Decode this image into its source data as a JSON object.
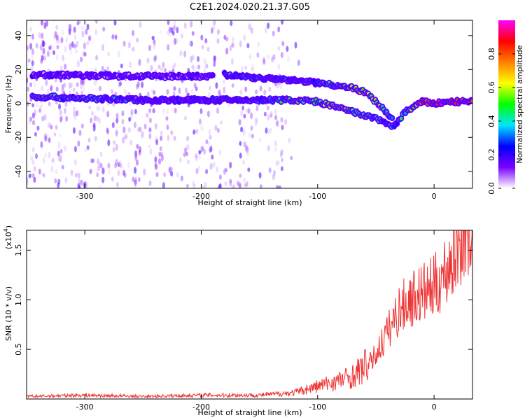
{
  "figure": {
    "title": "C2E1.2024.020.21.37.G05"
  },
  "chart_data": [
    {
      "type": "heatmap",
      "xlabel": "Height of straight line (km)",
      "ylabel": "Frequency (Hz)",
      "xlim": [
        -350,
        33
      ],
      "ylim": [
        -50,
        49
      ],
      "xticks": [
        -300,
        -200,
        -100,
        0
      ],
      "yticks": [
        -40,
        -20,
        0,
        20,
        40
      ],
      "colorbar": {
        "label": "Normalized spectral amplitude",
        "range": [
          0,
          1
        ],
        "ticks": [
          0.0,
          0.2,
          0.4,
          0.6,
          0.8
        ],
        "colormap": [
          "#ffffff",
          "#7b00ff",
          "#0000ff",
          "#00e5ff",
          "#00ff00",
          "#ffff00",
          "#ff8000",
          "#ff0000",
          "#ff00ff"
        ]
      },
      "features": [
        {
          "name": "main-band",
          "points": [
            [
              -345,
              4,
              0.4
            ],
            [
              -300,
              3,
              0.35
            ],
            [
              -250,
              2,
              0.2
            ],
            [
              -200,
              2,
              0.2
            ],
            [
              -150,
              2,
              0.25
            ],
            [
              -120,
              2,
              0.45
            ],
            [
              -100,
              1,
              0.5
            ],
            [
              -80,
              -3,
              0.55
            ],
            [
              -60,
              -7,
              0.4
            ],
            [
              -45,
              -10,
              0.3
            ],
            [
              -35,
              -14,
              0.3
            ],
            [
              -25,
              -5,
              0.35
            ],
            [
              -10,
              1,
              0.8
            ],
            [
              0,
              0,
              0.9
            ],
            [
              15,
              1,
              0.85
            ],
            [
              33,
              1,
              0.8
            ]
          ]
        },
        {
          "name": "upper-branch",
          "points": [
            [
              -180,
              17,
              0.3
            ],
            [
              -150,
              15,
              0.25
            ],
            [
              -110,
              13,
              0.2
            ],
            [
              -75,
              10,
              0.5
            ],
            [
              -60,
              7,
              0.6
            ],
            [
              -45,
              -2,
              0.5
            ],
            [
              -35,
              -10,
              0.35
            ]
          ]
        },
        {
          "name": "faint-upper-line",
          "points": [
            [
              -345,
              17,
              0.1
            ],
            [
              -250,
              16,
              0.1
            ],
            [
              -190,
              16,
              0.1
            ]
          ]
        }
      ]
    },
    {
      "type": "line",
      "xlabel": "Height of straight line (km)",
      "ylabel": "SNR (10 * v/v)",
      "yscale_label": "(x10",
      "yscale_exp": "4",
      "yscale_suffix": ")",
      "xlim": [
        -350,
        33
      ],
      "ylim": [
        0,
        1.7
      ],
      "xticks": [
        -300,
        -200,
        -100,
        0
      ],
      "yticks": [
        0.5,
        1.0,
        1.5
      ],
      "color": "#ee3333",
      "x": [
        -350,
        -300,
        -250,
        -200,
        -150,
        -120,
        -100,
        -80,
        -70,
        -60,
        -50,
        -40,
        -30,
        -20,
        -10,
        0,
        10,
        20,
        28,
        33
      ],
      "y": [
        0.02,
        0.03,
        0.02,
        0.03,
        0.03,
        0.05,
        0.1,
        0.15,
        0.18,
        0.25,
        0.4,
        0.6,
        0.8,
        0.9,
        0.95,
        1.0,
        1.15,
        1.35,
        1.55,
        1.4
      ]
    }
  ]
}
